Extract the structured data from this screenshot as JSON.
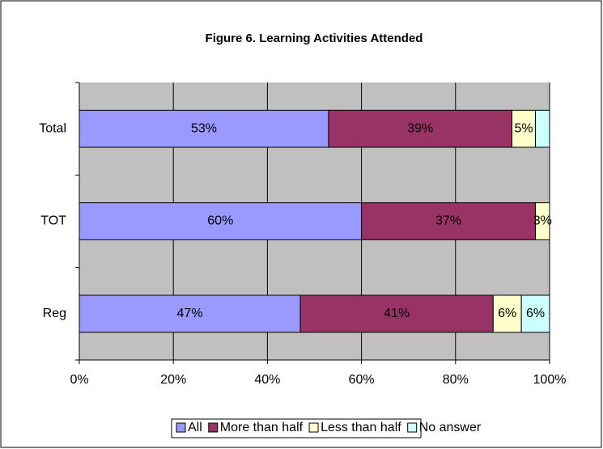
{
  "chart_data": {
    "type": "stacked-bar-horizontal",
    "title": "Figure 6. Learning Activities Attended",
    "categories": [
      "Total",
      "TOT",
      "Reg"
    ],
    "series": [
      {
        "name": "All",
        "color": "#9999ff",
        "values": [
          53,
          60,
          47
        ],
        "value_labels": [
          "53%",
          "60%",
          "47%"
        ]
      },
      {
        "name": "More than half",
        "color": "#993366",
        "values": [
          39,
          37,
          41
        ],
        "value_labels": [
          "39%",
          "37%",
          "41%"
        ]
      },
      {
        "name": "Less than half",
        "color": "#ffffcc",
        "values": [
          5,
          3,
          6
        ],
        "value_labels": [
          "5%",
          "3%",
          "6%"
        ]
      },
      {
        "name": "No answer",
        "color": "#ccffff",
        "values": [
          3,
          0,
          6
        ],
        "value_labels": [
          null,
          null,
          "6%"
        ]
      }
    ],
    "xlim": [
      0,
      100
    ],
    "xticks": [
      {
        "value": 0,
        "label": "0%"
      },
      {
        "value": 20,
        "label": "20%"
      },
      {
        "value": 40,
        "label": "40%"
      },
      {
        "value": 60,
        "label": "60%"
      },
      {
        "value": 80,
        "label": "80%"
      },
      {
        "value": 100,
        "label": "100%"
      }
    ],
    "grid": true,
    "legend": "bottom"
  }
}
